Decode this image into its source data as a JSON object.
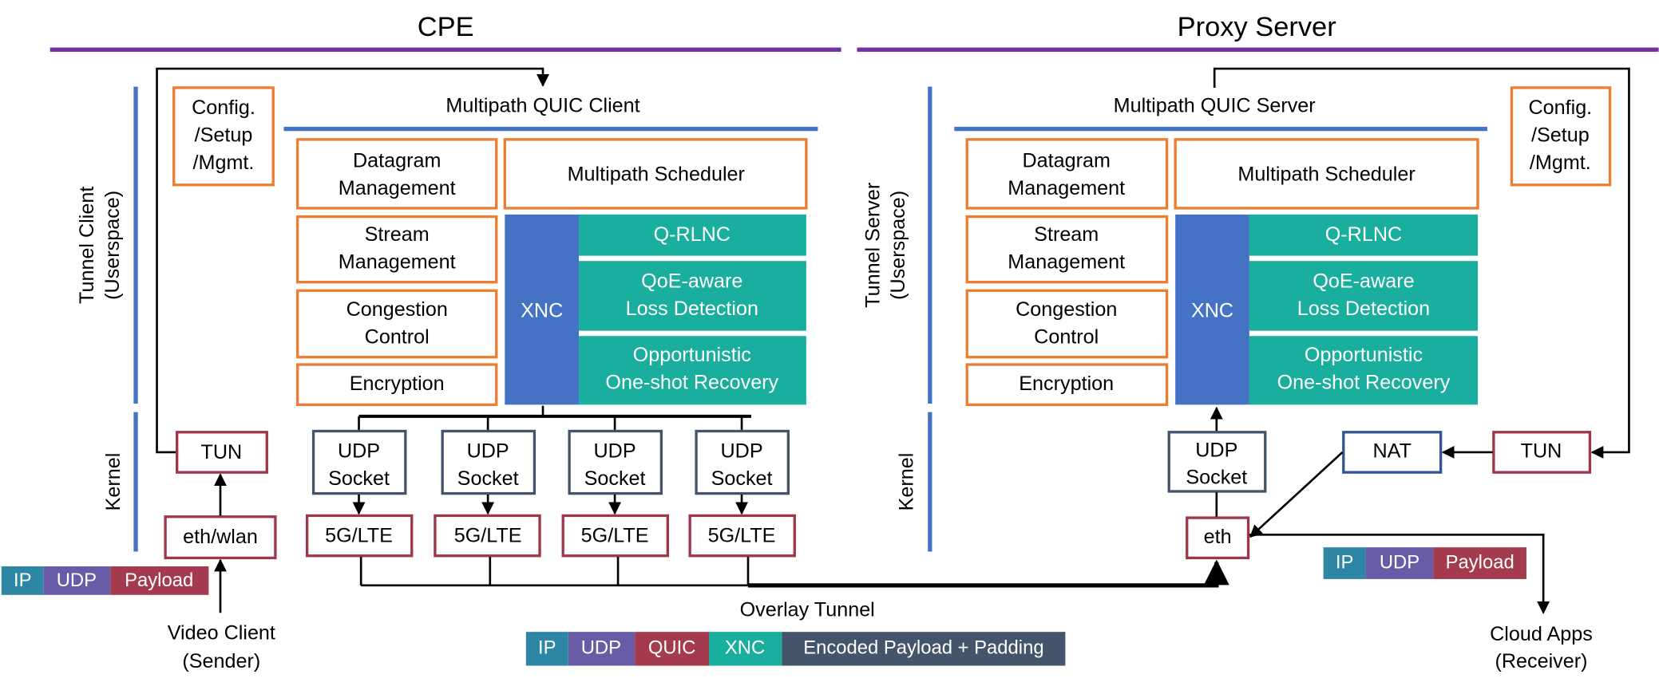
{
  "colors": {
    "section_line": "#7030a0",
    "layer_line": "#4472c4",
    "module_border": "#ed7d31",
    "xnc": "#4472c4",
    "xnc_module": "#1aae9f",
    "kernel_border": "#9e3548",
    "socket_border": "#44546a",
    "ip": "#2e86a5",
    "udp": "#6a5ba7",
    "payload": "#a33a4e",
    "quic": "#a33a4e",
    "xnc_header": "#1aae9f",
    "encoded": "#44546a"
  },
  "cpe": {
    "title": "CPE",
    "userspace_label": [
      "Tunnel Client",
      "(Userspace)"
    ],
    "kernel_label": "Kernel",
    "config": [
      "Config.",
      "/Setup",
      "/Mgmt."
    ],
    "quic_title": "Multipath QUIC Client",
    "modules": {
      "datagram": [
        "Datagram",
        "Management"
      ],
      "scheduler": "Multipath Scheduler",
      "stream": [
        "Stream",
        "Management"
      ],
      "congestion": [
        "Congestion",
        "Control"
      ],
      "encryption": "Encryption",
      "xnc": "XNC",
      "qrlnc": "Q-RLNC",
      "qoe": [
        "QoE-aware",
        "Loss Detection"
      ],
      "recovery": [
        "Opportunistic",
        "One-shot Recovery"
      ]
    },
    "tun": "TUN",
    "eth": "eth/wlan",
    "udp_socket": [
      "UDP",
      "Socket"
    ],
    "interfaces": [
      "5G/LTE",
      "5G/LTE",
      "5G/LTE",
      "5G/LTE"
    ],
    "packet": [
      "IP",
      "UDP",
      "Payload"
    ],
    "sender": [
      "Video Client",
      "(Sender)"
    ]
  },
  "proxy": {
    "title": "Proxy Server",
    "userspace_label": [
      "Tunnel Server",
      "(Userspace)"
    ],
    "kernel_label": "Kernel",
    "config": [
      "Config.",
      "/Setup",
      "/Mgmt."
    ],
    "quic_title": "Multipath QUIC Server",
    "modules": {
      "datagram": [
        "Datagram",
        "Management"
      ],
      "scheduler": "Multipath Scheduler",
      "stream": [
        "Stream",
        "Management"
      ],
      "congestion": [
        "Congestion",
        "Control"
      ],
      "encryption": "Encryption",
      "xnc": "XNC",
      "qrlnc": "Q-RLNC",
      "qoe": [
        "QoE-aware",
        "Loss Detection"
      ],
      "recovery": [
        "Opportunistic",
        "One-shot Recovery"
      ]
    },
    "udp_socket": [
      "UDP",
      "Socket"
    ],
    "eth": "eth",
    "nat": "NAT",
    "tun": "TUN",
    "packet": [
      "IP",
      "UDP",
      "Payload"
    ],
    "receiver": [
      "Cloud Apps",
      "(Receiver)"
    ]
  },
  "overlay": {
    "label": "Overlay Tunnel",
    "packet": [
      "IP",
      "UDP",
      "QUIC",
      "XNC",
      "Encoded Payload + Padding"
    ]
  }
}
